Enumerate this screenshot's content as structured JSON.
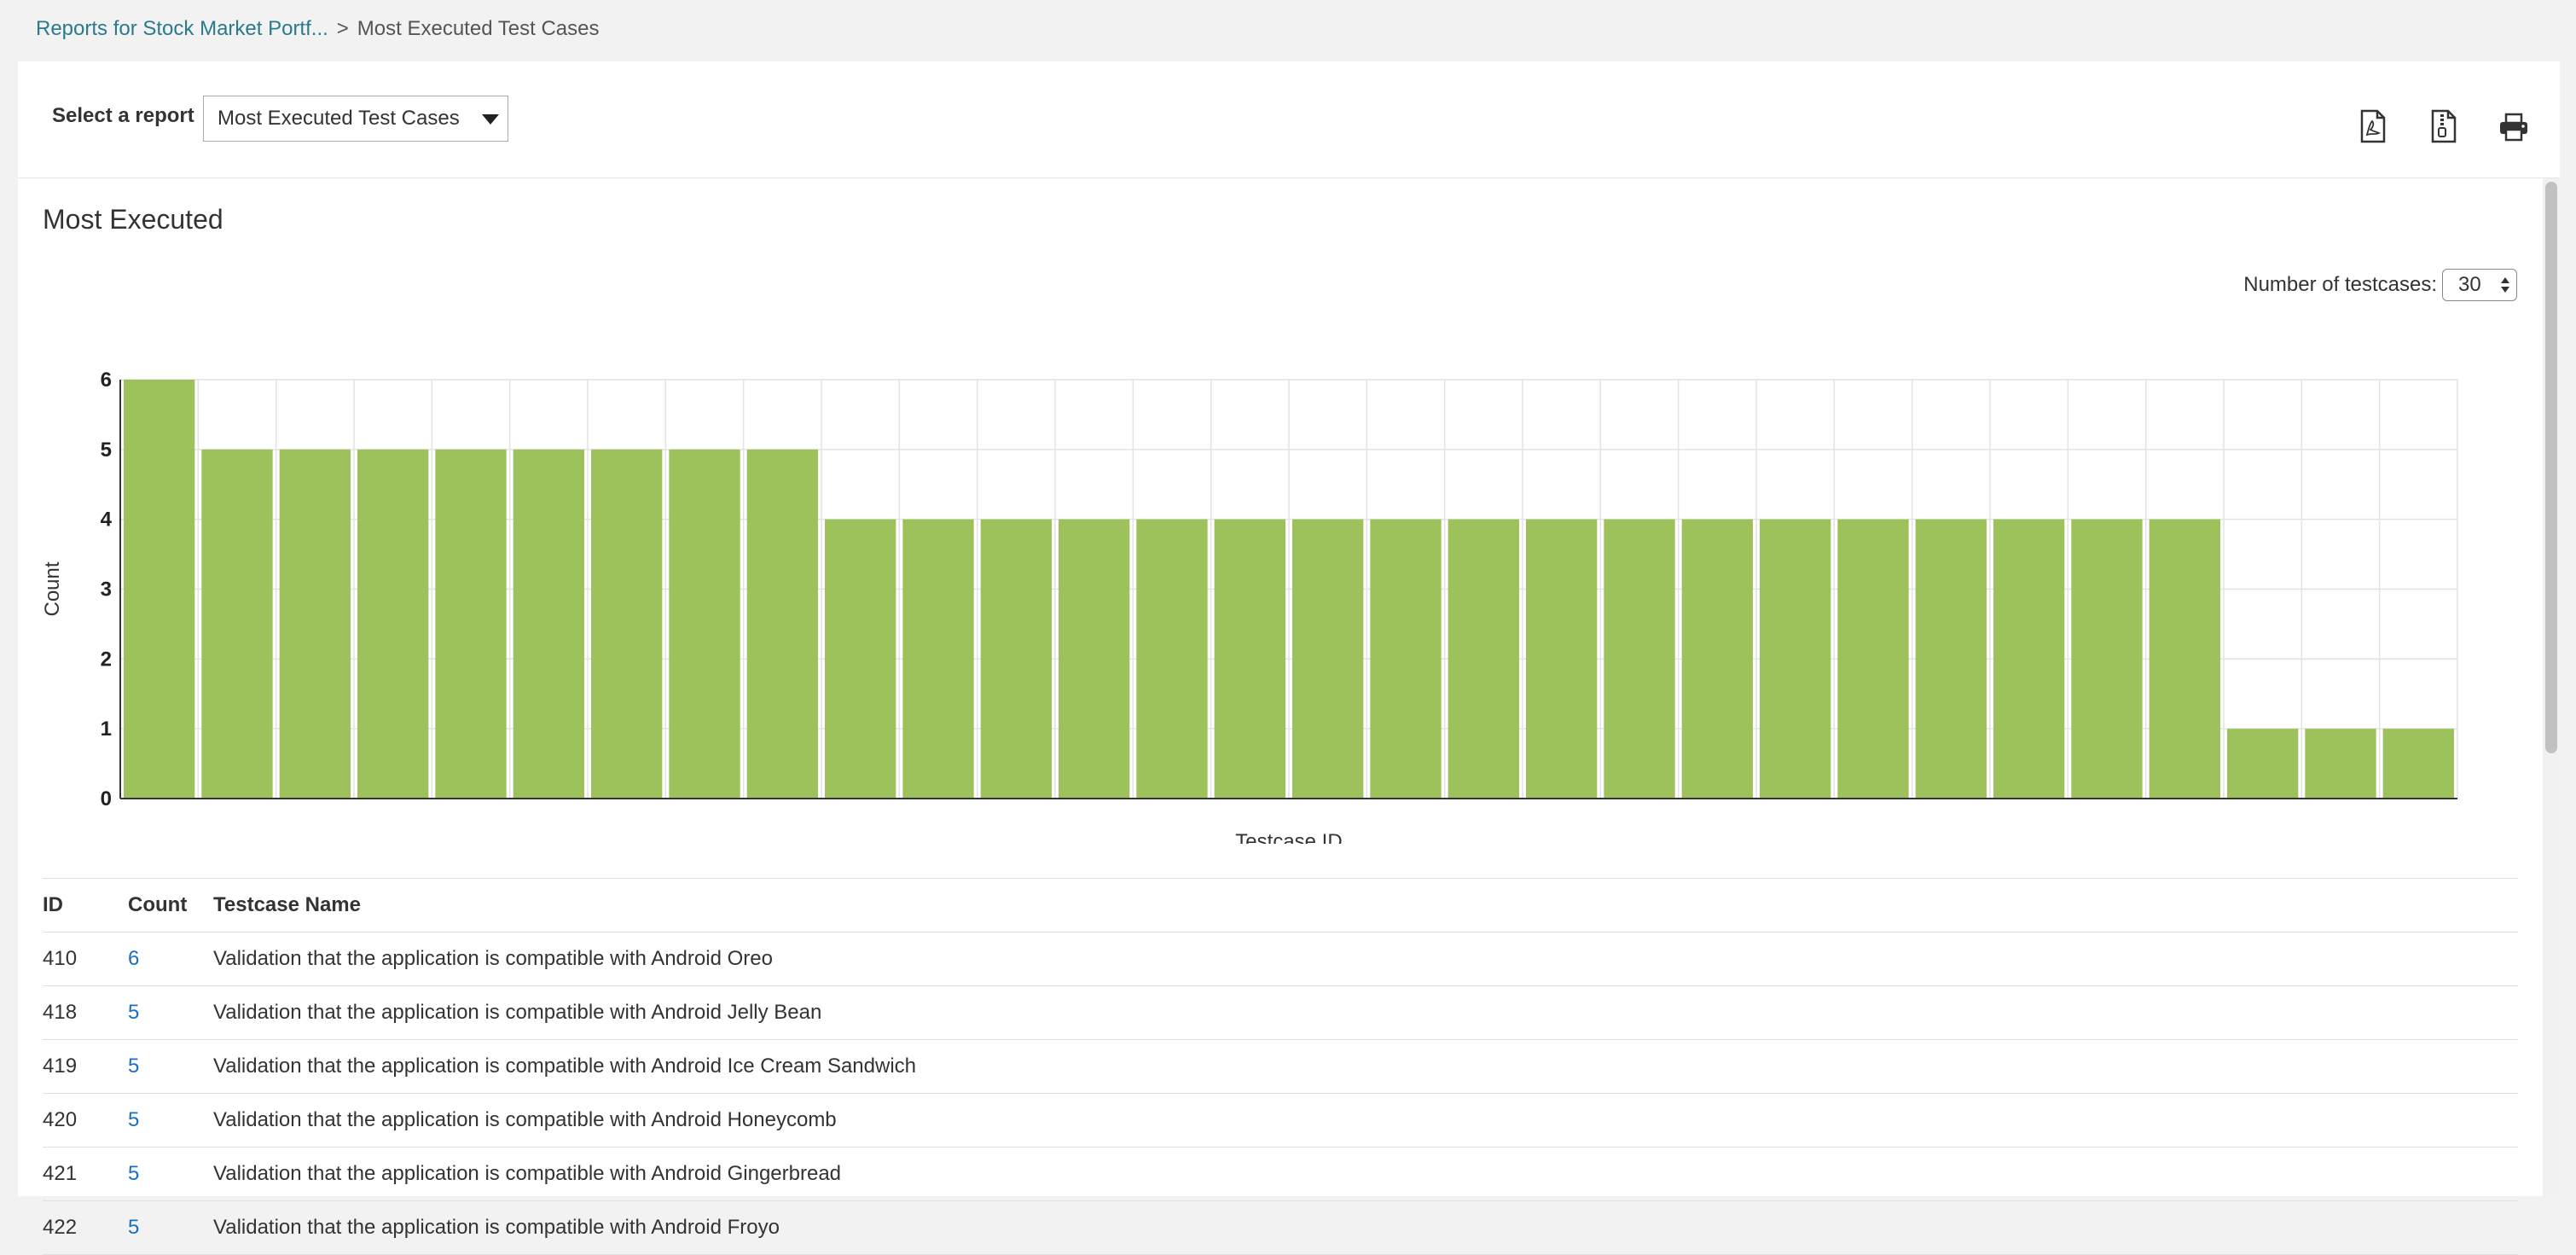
{
  "breadcrumb": {
    "parent": "Reports for Stock Market Portf...",
    "separator": ">",
    "current": "Most Executed Test Cases"
  },
  "toolbar": {
    "select_label": "Select a report",
    "selected_report": "Most Executed Test Cases",
    "icons": [
      "pdf-export-icon",
      "file-export-icon",
      "print-icon"
    ]
  },
  "report": {
    "title": "Most Executed",
    "num_testcases_label": "Number of testcases:",
    "num_testcases_value": "30"
  },
  "chart_data": {
    "type": "bar",
    "title": "",
    "xlabel": "Testcase ID",
    "ylabel": "Count",
    "ylim": [
      0,
      6
    ],
    "yticks": [
      "0",
      "1",
      "2",
      "3",
      "4",
      "5",
      "6"
    ],
    "values": [
      6,
      5,
      5,
      5,
      5,
      5,
      5,
      5,
      5,
      4,
      4,
      4,
      4,
      4,
      4,
      4,
      4,
      4,
      4,
      4,
      4,
      4,
      4,
      4,
      4,
      4,
      4,
      1,
      1,
      1
    ],
    "color": "#9dc15b",
    "grid": true
  },
  "table": {
    "headers": {
      "id": "ID",
      "count": "Count",
      "name": "Testcase Name"
    },
    "rows": [
      {
        "id": "410",
        "count": "6",
        "name": "Validation that the application is compatible with Android Oreo"
      },
      {
        "id": "418",
        "count": "5",
        "name": "Validation that the application is compatible with Android Jelly Bean"
      },
      {
        "id": "419",
        "count": "5",
        "name": "Validation that the application is compatible with Android Ice Cream Sandwich"
      },
      {
        "id": "420",
        "count": "5",
        "name": "Validation that the application is compatible with Android Honeycomb"
      },
      {
        "id": "421",
        "count": "5",
        "name": "Validation that the application is compatible with Android Gingerbread"
      },
      {
        "id": "422",
        "count": "5",
        "name": "Validation that the application is compatible with Android Froyo"
      }
    ]
  }
}
